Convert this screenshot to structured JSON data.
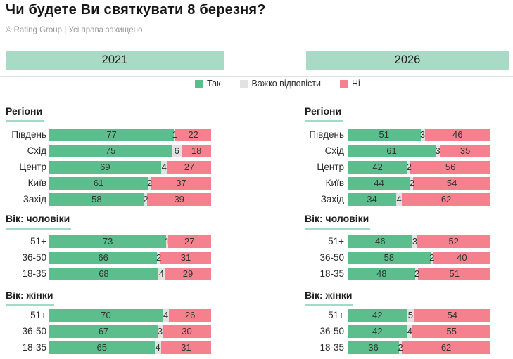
{
  "title": "Чи будете Ви святкувати 8 березня?",
  "copyright": "© Rating Group | Усі права захищено",
  "columns": [
    {
      "year": "2021"
    },
    {
      "year": "2026"
    }
  ],
  "legend": [
    {
      "label": "Так",
      "color": "#5cbe8d"
    },
    {
      "label": "Важко відповісти",
      "color": "#e2e2e2"
    },
    {
      "label": "Ні",
      "color": "#f5818f"
    }
  ],
  "colors": {
    "yes": "#5cbe8d",
    "hard": "#e2e2e2",
    "no": "#f5818f",
    "band": "#a9dac5",
    "underline": "#9edcc6"
  },
  "chart_data": [
    {
      "type": "bar",
      "stacked": true,
      "orientation": "horizontal",
      "unit": "percent",
      "year": "2021",
      "series_names": [
        "Так",
        "Важко відповісти",
        "Ні"
      ],
      "sections": [
        {
          "title": "Регіони",
          "categories": [
            "Південь",
            "Схід",
            "Центр",
            "Київ",
            "Захід"
          ],
          "series": [
            {
              "name": "Так",
              "values": [
                77,
                75,
                69,
                61,
                58
              ]
            },
            {
              "name": "Важко відповісти",
              "values": [
                1,
                6,
                4,
                2,
                2
              ]
            },
            {
              "name": "Ні",
              "values": [
                22,
                18,
                27,
                37,
                39
              ]
            }
          ]
        },
        {
          "title": "Вік: чоловіки",
          "categories": [
            "51+",
            "36-50",
            "18-35"
          ],
          "series": [
            {
              "name": "Так",
              "values": [
                73,
                66,
                68
              ]
            },
            {
              "name": "Важко відповісти",
              "values": [
                1,
                2,
                4
              ]
            },
            {
              "name": "Ні",
              "values": [
                27,
                31,
                29
              ]
            }
          ]
        },
        {
          "title": "Вік: жінки",
          "categories": [
            "51+",
            "36-50",
            "18-35"
          ],
          "series": [
            {
              "name": "Так",
              "values": [
                70,
                67,
                65
              ]
            },
            {
              "name": "Важко відповісти",
              "values": [
                4,
                3,
                4
              ]
            },
            {
              "name": "Ні",
              "values": [
                26,
                30,
                31
              ]
            }
          ]
        }
      ]
    },
    {
      "type": "bar",
      "stacked": true,
      "orientation": "horizontal",
      "unit": "percent",
      "year": "2026",
      "series_names": [
        "Так",
        "Важко відповісти",
        "Ні"
      ],
      "sections": [
        {
          "title": "Регіони",
          "categories": [
            "Південь",
            "Схід",
            "Центр",
            "Київ",
            "Захід"
          ],
          "series": [
            {
              "name": "Так",
              "values": [
                51,
                61,
                42,
                44,
                34
              ]
            },
            {
              "name": "Важко відповісти",
              "values": [
                3,
                3,
                2,
                2,
                4
              ]
            },
            {
              "name": "Ні",
              "values": [
                46,
                35,
                56,
                54,
                62
              ]
            }
          ]
        },
        {
          "title": "Вік: чоловіки",
          "categories": [
            "51+",
            "36-50",
            "18-35"
          ],
          "series": [
            {
              "name": "Так",
              "values": [
                46,
                58,
                48
              ]
            },
            {
              "name": "Важко відповісти",
              "values": [
                3,
                2,
                2
              ]
            },
            {
              "name": "Ні",
              "values": [
                52,
                40,
                51
              ]
            }
          ]
        },
        {
          "title": "Вік: жінки",
          "categories": [
            "51+",
            "36-50",
            "18-35"
          ],
          "series": [
            {
              "name": "Так",
              "values": [
                42,
                42,
                36
              ]
            },
            {
              "name": "Важко відповісти",
              "values": [
                5,
                4,
                2
              ]
            },
            {
              "name": "Ні",
              "values": [
                54,
                55,
                62
              ]
            }
          ]
        }
      ]
    }
  ]
}
